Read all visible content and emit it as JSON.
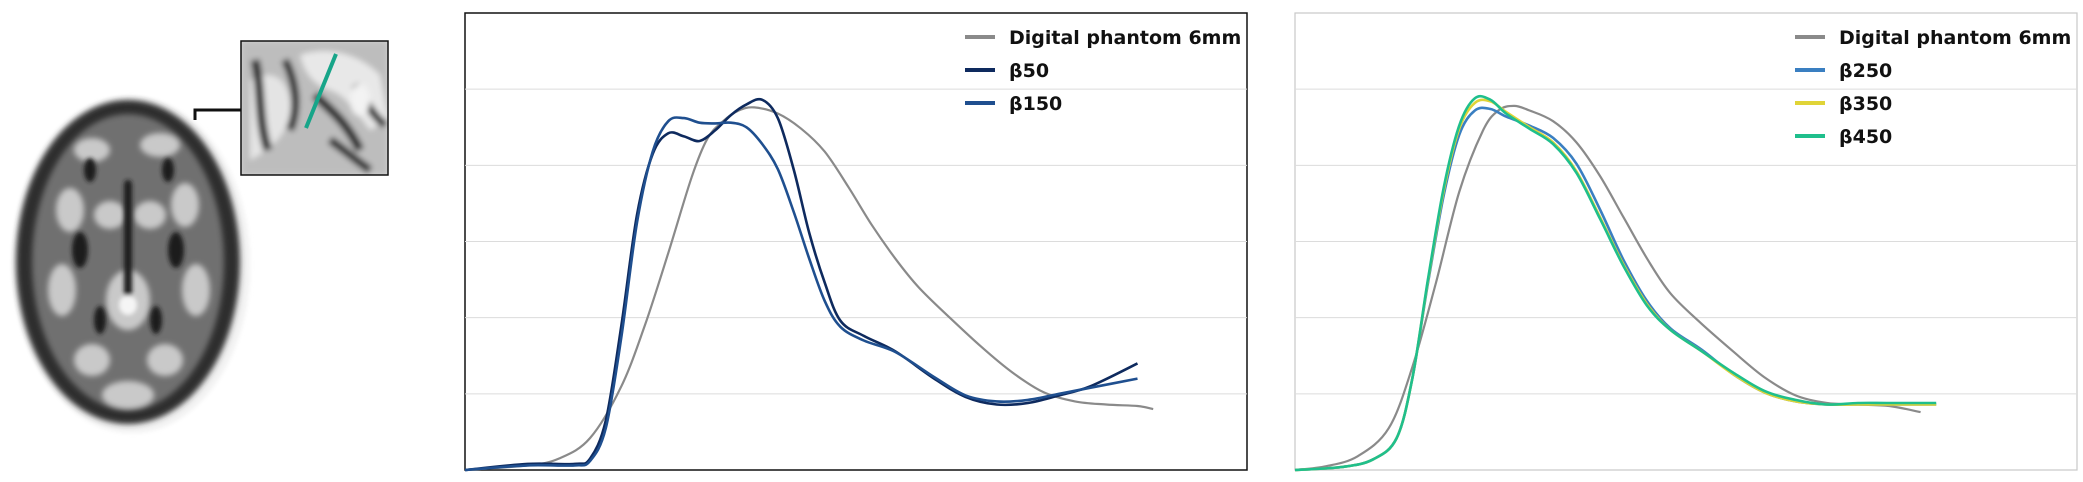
{
  "colors": {
    "phantom": "#8a8a8a",
    "b50": "#0e2a5e",
    "b150": "#1f4f8f",
    "b250": "#3a7fc1",
    "b350": "#e0d437",
    "b450": "#1fbf8c",
    "profile_line": "#17a589",
    "grid": "#dcdcdc"
  },
  "inset": {
    "description_icon": "brain-axial-slice-image"
  },
  "chart_data": [
    {
      "type": "line",
      "xlim": [
        0,
        100
      ],
      "ylim": [
        0,
        6
      ],
      "grid": "horizontal",
      "legend_position": "top-right",
      "series": [
        {
          "name": "Digital phantom 6mm",
          "color_key": "phantom",
          "points": [
            [
              0,
              0.0
            ],
            [
              8,
              0.06
            ],
            [
              12,
              0.15
            ],
            [
              16,
              0.42
            ],
            [
              20,
              1.1
            ],
            [
              23,
              1.9
            ],
            [
              26,
              2.85
            ],
            [
              29,
              3.85
            ],
            [
              31,
              4.35
            ],
            [
              33,
              4.58
            ],
            [
              35,
              4.72
            ],
            [
              37,
              4.76
            ],
            [
              40,
              4.68
            ],
            [
              43,
              4.48
            ],
            [
              46,
              4.18
            ],
            [
              49,
              3.72
            ],
            [
              52,
              3.22
            ],
            [
              55,
              2.78
            ],
            [
              58,
              2.4
            ],
            [
              62,
              2.0
            ],
            [
              66,
              1.62
            ],
            [
              70,
              1.28
            ],
            [
              74,
              1.02
            ],
            [
              78,
              0.9
            ],
            [
              82,
              0.86
            ],
            [
              86,
              0.84
            ],
            [
              88,
              0.8
            ]
          ]
        },
        {
          "name": "β50",
          "color_key": "b50",
          "points": [
            [
              0,
              0.0
            ],
            [
              8,
              0.08
            ],
            [
              14,
              0.08
            ],
            [
              16,
              0.15
            ],
            [
              18,
              0.65
            ],
            [
              20,
              1.9
            ],
            [
              22,
              3.35
            ],
            [
              24,
              4.15
            ],
            [
              26,
              4.42
            ],
            [
              28,
              4.38
            ],
            [
              30,
              4.32
            ],
            [
              32,
              4.46
            ],
            [
              34,
              4.66
            ],
            [
              36,
              4.8
            ],
            [
              38,
              4.86
            ],
            [
              40,
              4.62
            ],
            [
              42,
              3.96
            ],
            [
              44,
              3.12
            ],
            [
              46,
              2.46
            ],
            [
              48,
              1.96
            ],
            [
              51,
              1.76
            ],
            [
              55,
              1.56
            ],
            [
              60,
              1.2
            ],
            [
              64,
              0.96
            ],
            [
              68,
              0.86
            ],
            [
              72,
              0.88
            ],
            [
              76,
              0.98
            ],
            [
              80,
              1.1
            ],
            [
              86,
              1.4
            ]
          ]
        },
        {
          "name": "β150",
          "color_key": "b150",
          "points": [
            [
              0,
              0.0
            ],
            [
              8,
              0.06
            ],
            [
              14,
              0.06
            ],
            [
              16,
              0.12
            ],
            [
              18,
              0.55
            ],
            [
              20,
              1.75
            ],
            [
              22,
              3.25
            ],
            [
              24,
              4.18
            ],
            [
              26,
              4.58
            ],
            [
              28,
              4.62
            ],
            [
              30,
              4.56
            ],
            [
              32,
              4.55
            ],
            [
              34,
              4.56
            ],
            [
              36,
              4.5
            ],
            [
              38,
              4.28
            ],
            [
              40,
              3.95
            ],
            [
              42,
              3.4
            ],
            [
              44,
              2.78
            ],
            [
              46,
              2.22
            ],
            [
              48,
              1.88
            ],
            [
              51,
              1.7
            ],
            [
              55,
              1.55
            ],
            [
              60,
              1.22
            ],
            [
              64,
              0.98
            ],
            [
              68,
              0.9
            ],
            [
              72,
              0.92
            ],
            [
              76,
              1.0
            ],
            [
              80,
              1.08
            ],
            [
              86,
              1.2
            ]
          ]
        }
      ]
    },
    {
      "type": "line",
      "xlim": [
        0,
        100
      ],
      "ylim": [
        0,
        6
      ],
      "grid": "horizontal",
      "legend_position": "top-right",
      "series": [
        {
          "name": "Digital phantom 6mm",
          "color_key": "phantom",
          "points": [
            [
              0,
              0.0
            ],
            [
              4,
              0.05
            ],
            [
              8,
              0.18
            ],
            [
              12,
              0.55
            ],
            [
              15,
              1.35
            ],
            [
              18,
              2.45
            ],
            [
              21,
              3.65
            ],
            [
              24,
              4.45
            ],
            [
              26,
              4.72
            ],
            [
              28,
              4.78
            ],
            [
              30,
              4.72
            ],
            [
              33,
              4.58
            ],
            [
              36,
              4.3
            ],
            [
              39,
              3.86
            ],
            [
              42,
              3.32
            ],
            [
              45,
              2.78
            ],
            [
              48,
              2.32
            ],
            [
              52,
              1.92
            ],
            [
              56,
              1.56
            ],
            [
              60,
              1.22
            ],
            [
              64,
              0.98
            ],
            [
              68,
              0.88
            ],
            [
              72,
              0.86
            ],
            [
              76,
              0.84
            ],
            [
              80,
              0.76
            ]
          ]
        },
        {
          "name": "β250",
          "color_key": "b250",
          "points": [
            [
              0,
              0.0
            ],
            [
              6,
              0.04
            ],
            [
              10,
              0.14
            ],
            [
              13,
              0.42
            ],
            [
              15,
              1.2
            ],
            [
              17,
              2.45
            ],
            [
              19,
              3.6
            ],
            [
              21,
              4.4
            ],
            [
              23,
              4.72
            ],
            [
              25,
              4.74
            ],
            [
              27,
              4.64
            ],
            [
              30,
              4.52
            ],
            [
              33,
              4.36
            ],
            [
              36,
              4.02
            ],
            [
              39,
              3.42
            ],
            [
              42,
              2.76
            ],
            [
              45,
              2.22
            ],
            [
              48,
              1.86
            ],
            [
              52,
              1.58
            ],
            [
              56,
              1.26
            ],
            [
              60,
              1.02
            ],
            [
              64,
              0.9
            ],
            [
              68,
              0.86
            ],
            [
              72,
              0.86
            ],
            [
              76,
              0.86
            ],
            [
              82,
              0.86
            ]
          ]
        },
        {
          "name": "β350",
          "color_key": "b350",
          "points": [
            [
              0,
              0.0
            ],
            [
              6,
              0.04
            ],
            [
              10,
              0.14
            ],
            [
              13,
              0.42
            ],
            [
              15,
              1.2
            ],
            [
              17,
              2.48
            ],
            [
              19,
              3.66
            ],
            [
              21,
              4.48
            ],
            [
              23,
              4.82
            ],
            [
              25,
              4.84
            ],
            [
              27,
              4.7
            ],
            [
              30,
              4.5
            ],
            [
              33,
              4.3
            ],
            [
              36,
              3.92
            ],
            [
              39,
              3.32
            ],
            [
              42,
              2.7
            ],
            [
              45,
              2.18
            ],
            [
              48,
              1.84
            ],
            [
              52,
              1.56
            ],
            [
              56,
              1.26
            ],
            [
              60,
              1.02
            ],
            [
              64,
              0.9
            ],
            [
              68,
              0.86
            ],
            [
              72,
              0.86
            ],
            [
              76,
              0.86
            ],
            [
              82,
              0.86
            ]
          ]
        },
        {
          "name": "β450",
          "color_key": "b450",
          "points": [
            [
              0,
              0.0
            ],
            [
              6,
              0.04
            ],
            [
              10,
              0.14
            ],
            [
              13,
              0.42
            ],
            [
              15,
              1.2
            ],
            [
              17,
              2.5
            ],
            [
              19,
              3.7
            ],
            [
              21,
              4.52
            ],
            [
              23,
              4.88
            ],
            [
              25,
              4.86
            ],
            [
              27,
              4.68
            ],
            [
              30,
              4.48
            ],
            [
              33,
              4.28
            ],
            [
              36,
              3.9
            ],
            [
              39,
              3.3
            ],
            [
              42,
              2.68
            ],
            [
              45,
              2.16
            ],
            [
              48,
              1.84
            ],
            [
              52,
              1.56
            ],
            [
              56,
              1.28
            ],
            [
              60,
              1.04
            ],
            [
              64,
              0.92
            ],
            [
              68,
              0.86
            ],
            [
              72,
              0.88
            ],
            [
              76,
              0.88
            ],
            [
              82,
              0.88
            ]
          ]
        }
      ]
    }
  ]
}
